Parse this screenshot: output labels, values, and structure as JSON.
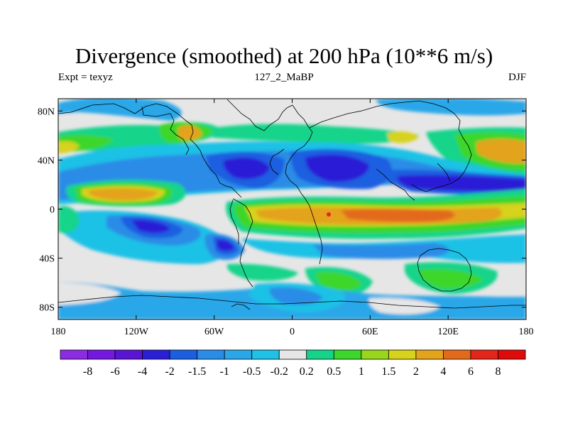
{
  "title": "Divergence (smoothed) at 200 hPa (10**6 m/s)",
  "subtitle_left": "Expt = texyz",
  "subtitle_center": "127_2_MaBP",
  "subtitle_right": "DJF",
  "map_data": {
    "type": "filled-contour-map",
    "projection": "cylindrical-equidistant",
    "x_range": [
      -180,
      180
    ],
    "y_range": [
      -90,
      90
    ],
    "x_ticks": [
      {
        "value": -180,
        "label": "180"
      },
      {
        "value": -120,
        "label": "120W"
      },
      {
        "value": -60,
        "label": "60W"
      },
      {
        "value": 0,
        "label": "0"
      },
      {
        "value": 60,
        "label": "60E"
      },
      {
        "value": 120,
        "label": "120E"
      },
      {
        "value": 180,
        "label": "180"
      }
    ],
    "y_ticks": [
      {
        "value": 80,
        "label": "80N"
      },
      {
        "value": 40,
        "label": "40N"
      },
      {
        "value": 0,
        "label": "0"
      },
      {
        "value": -40,
        "label": "40S"
      },
      {
        "value": -80,
        "label": "80S"
      }
    ],
    "background_color": "#e6e6e6"
  },
  "colorbar": {
    "labels": [
      "-8",
      "-6",
      "-4",
      "-2",
      "-1.5",
      "-1",
      "-0.5",
      "-0.2",
      "0.2",
      "0.5",
      "1",
      "1.5",
      "2",
      "4",
      "6",
      "8"
    ],
    "colors": [
      "#8b2be2",
      "#7318e0",
      "#5a14d4",
      "#2b1fd6",
      "#1b5fe0",
      "#2b8ce6",
      "#2aa7e8",
      "#1fc1e6",
      "#e6e6e6",
      "#15d48a",
      "#3cd62c",
      "#9ad61c",
      "#d7d21a",
      "#e3a31a",
      "#e36a1a",
      "#e3251c",
      "#e00a0a"
    ]
  }
}
